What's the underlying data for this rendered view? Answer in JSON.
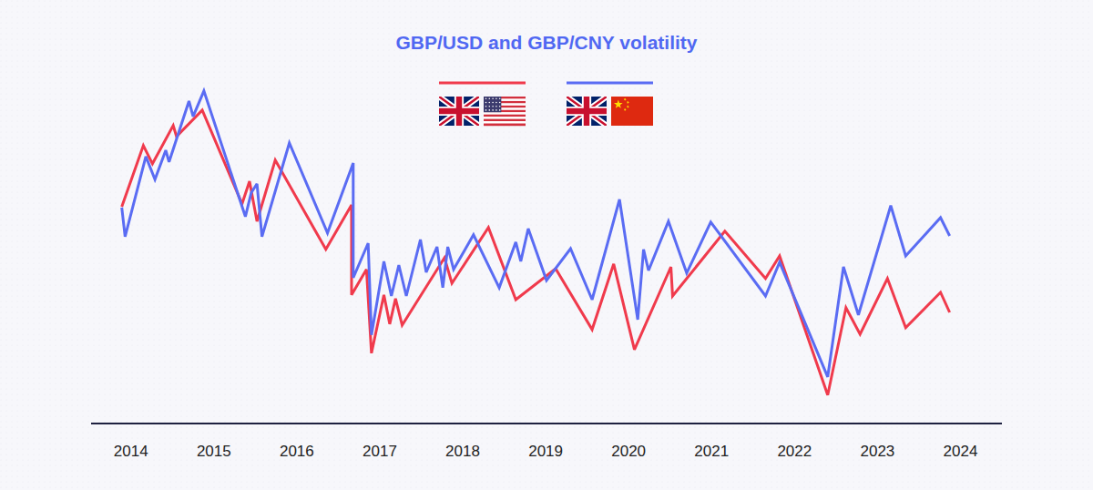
{
  "chart_data": {
    "type": "line",
    "title": "GBP/USD and GBP/CNY volatility",
    "xlim": [
      2013.52,
      2024.5
    ],
    "xticks": [
      2014,
      2015,
      2016,
      2017,
      2018,
      2019,
      2020,
      2021,
      2022,
      2023,
      2024
    ],
    "ylim": [
      0,
      100
    ],
    "tick_labels": "x",
    "grid": false,
    "legend": "top",
    "series": [
      {
        "color": "#f03a4c",
        "x": [
          2013.89,
          2014.15,
          2014.26,
          2014.51,
          2014.55,
          2014.86,
          2015.34,
          2015.43,
          2015.52,
          2015.74,
          2016.35,
          2016.66,
          2016.66,
          2016.84,
          2016.9,
          2017.05,
          2017.12,
          2017.19,
          2017.27,
          2017.78,
          2017.87,
          2018.31,
          2018.64,
          2019.12,
          2019.56,
          2019.82,
          2020.07,
          2020.51,
          2020.53,
          2021.16,
          2021.65,
          2021.82,
          2022.4,
          2022.62,
          2022.79,
          2023.12,
          2023.34,
          2023.76,
          2023.87
        ],
        "values": [
          59.5,
          76.3,
          71.3,
          81.8,
          78.8,
          86,
          60.3,
          66.5,
          55.5,
          72.3,
          47.8,
          60,
          35.3,
          42.3,
          19.3,
          35.3,
          27.3,
          34.3,
          27,
          45.5,
          38.5,
          53.8,
          34,
          42.5,
          25.8,
          43.8,
          20.3,
          43,
          35,
          52.8,
          39.8,
          46,
          7.8,
          31.8,
          24.5,
          39.8,
          26.3,
          36,
          30.5
        ]
      },
      {
        "color": "#5a6cf3",
        "x": [
          2013.89,
          2013.93,
          2014.18,
          2014.29,
          2014.42,
          2014.46,
          2014.7,
          2014.75,
          2014.88,
          2015.38,
          2015.45,
          2015.52,
          2015.58,
          2015.91,
          2016.37,
          2016.68,
          2016.68,
          2016.86,
          2016.9,
          2017.05,
          2017.14,
          2017.23,
          2017.32,
          2017.49,
          2017.56,
          2017.69,
          2017.76,
          2017.82,
          2017.89,
          2018.13,
          2018.44,
          2018.64,
          2018.7,
          2018.79,
          2019.01,
          2019.3,
          2019.56,
          2019.89,
          2020.11,
          2020.18,
          2020.24,
          2020.48,
          2020.7,
          2020.99,
          2021.65,
          2021.82,
          2022.4,
          2022.59,
          2022.77,
          2023.16,
          2023.34,
          2023.76,
          2023.87
        ],
        "values": [
          59.3,
          51.3,
          73.3,
          67,
          75,
          71.8,
          88.5,
          84.3,
          91.3,
          56.8,
          63.3,
          65.8,
          51.3,
          77,
          52.3,
          71.5,
          40,
          49.5,
          24.3,
          44.5,
          35,
          43.5,
          35,
          50.5,
          41.5,
          48.5,
          37.3,
          48.5,
          42.3,
          51.8,
          37.3,
          49.8,
          44.5,
          53.5,
          39.3,
          48,
          34,
          61.5,
          28.5,
          47.8,
          42,
          55.5,
          41.3,
          55.3,
          35,
          44.3,
          12.8,
          43,
          29.8,
          59.8,
          46,
          56.5,
          51.5
        ]
      }
    ]
  }
}
